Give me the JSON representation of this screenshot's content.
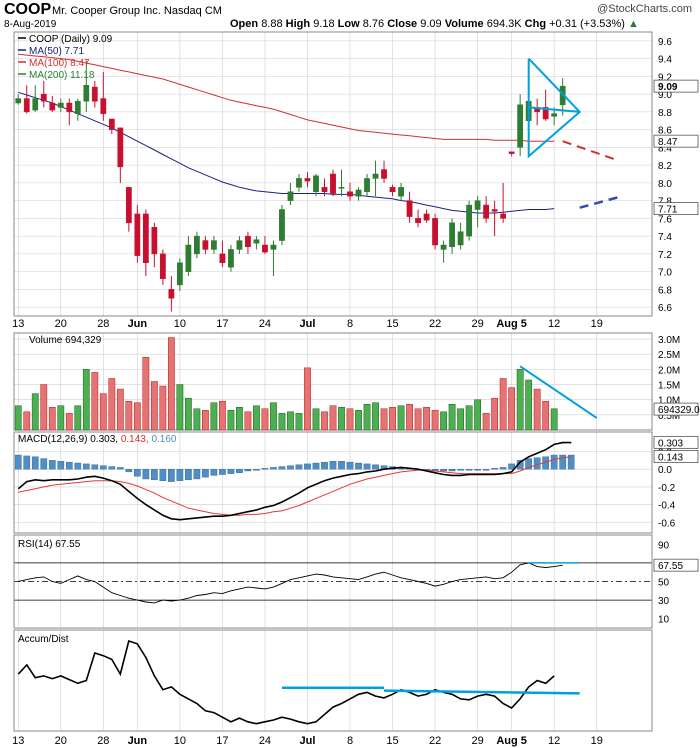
{
  "header": {
    "symbol": "COOP",
    "company": "Mr. Cooper Group Inc.  Nasdaq CM",
    "date": "8-Aug-2019",
    "brand": "@StockCharts.com",
    "quote": {
      "open_label": "Open",
      "open": "8.88",
      "high_label": "High",
      "high": "9.18",
      "low_label": "Low",
      "low": "8.76",
      "close_label": "Close",
      "close": "9.09",
      "volume_label": "Volume",
      "volume": "694.3K",
      "chg_label": "Chg",
      "chg": "+0.31 (+3.53%)"
    }
  },
  "colors": {
    "up": "#2e7d32",
    "down": "#c8102e",
    "ma50": "#1a237e",
    "ma100": "#d32f2f",
    "trend": "#00a0e0",
    "macd_hist": "#4f8fc7",
    "grid": "#cfcfcf",
    "border": "#888888"
  },
  "chart_data": [
    {
      "type": "candlestick",
      "panel": "price",
      "legend": [
        {
          "text": "COOP (Daily) 9.09",
          "color": "#000000"
        },
        {
          "text": "MA(50) 7.71",
          "color": "#1a237e"
        },
        {
          "text": "MA(100) 8.47",
          "color": "#d32f2f"
        },
        {
          "text": "MA(200) 11.18",
          "color": "#2e7d32"
        }
      ],
      "y_ticks": [
        "9.6",
        "9.4",
        "9.2",
        "9.0",
        "8.8",
        "8.6",
        "8.4",
        "8.2",
        "8.0",
        "7.8",
        "7.6",
        "7.4",
        "7.2",
        "7.0",
        "6.8",
        "6.6"
      ],
      "y_tick_values": [
        9.6,
        9.4,
        9.2,
        9.0,
        8.8,
        8.6,
        8.4,
        8.2,
        8.0,
        7.8,
        7.6,
        7.4,
        7.2,
        7.0,
        6.8,
        6.6
      ],
      "ylim": [
        6.5,
        9.7
      ],
      "price_labels": [
        {
          "text": "9.09",
          "value": 9.09,
          "bold": true
        },
        {
          "text": "8.47",
          "value": 8.47,
          "bold": false
        },
        {
          "text": "7.71",
          "value": 7.71,
          "bold": false
        }
      ],
      "x_labels": [
        "13",
        "20",
        "28",
        "Jun",
        "10",
        "17",
        "24",
        "Jul",
        "8",
        "15",
        "22",
        "29",
        "Aug 5",
        "12",
        "19"
      ],
      "x_label_index": [
        0,
        5,
        10,
        14,
        19,
        24,
        29,
        34,
        39,
        44,
        49,
        54,
        58,
        63,
        68
      ],
      "candles": [
        {
          "o": 8.9,
          "h": 9.0,
          "l": 8.88,
          "c": 8.95
        },
        {
          "o": 8.95,
          "h": 9.1,
          "l": 8.78,
          "c": 8.8
        },
        {
          "o": 8.82,
          "h": 9.1,
          "l": 8.8,
          "c": 8.95
        },
        {
          "o": 9.0,
          "h": 9.15,
          "l": 8.85,
          "c": 8.92
        },
        {
          "o": 8.9,
          "h": 8.98,
          "l": 8.8,
          "c": 8.82
        },
        {
          "o": 8.85,
          "h": 8.95,
          "l": 8.8,
          "c": 8.9
        },
        {
          "o": 8.9,
          "h": 8.95,
          "l": 8.65,
          "c": 8.8
        },
        {
          "o": 8.78,
          "h": 8.95,
          "l": 8.7,
          "c": 8.92
        },
        {
          "o": 8.92,
          "h": 9.38,
          "l": 8.8,
          "c": 9.1
        },
        {
          "o": 9.08,
          "h": 9.15,
          "l": 8.85,
          "c": 8.92
        },
        {
          "o": 8.95,
          "h": 9.25,
          "l": 8.7,
          "c": 8.78
        },
        {
          "o": 8.72,
          "h": 8.72,
          "l": 8.55,
          "c": 8.6
        },
        {
          "o": 8.62,
          "h": 8.62,
          "l": 8.0,
          "c": 8.18
        },
        {
          "o": 7.95,
          "h": 7.95,
          "l": 7.45,
          "c": 7.55
        },
        {
          "o": 7.65,
          "h": 7.75,
          "l": 7.1,
          "c": 7.18
        },
        {
          "o": 7.65,
          "h": 7.7,
          "l": 6.95,
          "c": 7.1
        },
        {
          "o": 7.5,
          "h": 7.55,
          "l": 7.05,
          "c": 7.2
        },
        {
          "o": 7.2,
          "h": 7.25,
          "l": 6.85,
          "c": 6.92
        },
        {
          "o": 6.8,
          "h": 6.95,
          "l": 6.55,
          "c": 6.7
        },
        {
          "o": 6.85,
          "h": 7.15,
          "l": 6.78,
          "c": 7.1
        },
        {
          "o": 7.0,
          "h": 7.4,
          "l": 6.95,
          "c": 7.3
        },
        {
          "o": 7.2,
          "h": 7.45,
          "l": 7.15,
          "c": 7.4
        },
        {
          "o": 7.35,
          "h": 7.4,
          "l": 7.2,
          "c": 7.25
        },
        {
          "o": 7.25,
          "h": 7.4,
          "l": 7.2,
          "c": 7.35
        },
        {
          "o": 7.2,
          "h": 7.35,
          "l": 7.05,
          "c": 7.1
        },
        {
          "o": 7.05,
          "h": 7.3,
          "l": 7.0,
          "c": 7.25
        },
        {
          "o": 7.25,
          "h": 7.4,
          "l": 7.2,
          "c": 7.35
        },
        {
          "o": 7.4,
          "h": 7.45,
          "l": 7.2,
          "c": 7.28
        },
        {
          "o": 7.32,
          "h": 7.4,
          "l": 7.25,
          "c": 7.36
        },
        {
          "o": 7.3,
          "h": 7.4,
          "l": 7.2,
          "c": 7.22
        },
        {
          "o": 7.25,
          "h": 7.35,
          "l": 6.95,
          "c": 7.3
        },
        {
          "o": 7.35,
          "h": 7.75,
          "l": 7.3,
          "c": 7.7
        },
        {
          "o": 7.8,
          "h": 8.0,
          "l": 7.75,
          "c": 7.9
        },
        {
          "o": 7.95,
          "h": 8.1,
          "l": 7.9,
          "c": 8.05
        },
        {
          "o": 8.05,
          "h": 8.12,
          "l": 7.95,
          "c": 8.02
        },
        {
          "o": 7.9,
          "h": 8.1,
          "l": 7.85,
          "c": 8.08
        },
        {
          "o": 7.95,
          "h": 8.05,
          "l": 7.85,
          "c": 7.9
        },
        {
          "o": 8.1,
          "h": 8.15,
          "l": 7.85,
          "c": 7.88
        },
        {
          "o": 7.95,
          "h": 8.15,
          "l": 7.85,
          "c": 7.95
        },
        {
          "o": 7.9,
          "h": 8.0,
          "l": 7.8,
          "c": 7.85
        },
        {
          "o": 7.85,
          "h": 7.95,
          "l": 7.8,
          "c": 7.92
        },
        {
          "o": 7.9,
          "h": 8.1,
          "l": 7.85,
          "c": 8.05
        },
        {
          "o": 8.05,
          "h": 8.25,
          "l": 7.85,
          "c": 8.1
        },
        {
          "o": 8.15,
          "h": 8.25,
          "l": 8.0,
          "c": 8.05
        },
        {
          "o": 7.95,
          "h": 7.98,
          "l": 7.85,
          "c": 7.9
        },
        {
          "o": 7.85,
          "h": 8.0,
          "l": 7.8,
          "c": 7.95
        },
        {
          "o": 7.8,
          "h": 7.9,
          "l": 7.55,
          "c": 7.62
        },
        {
          "o": 7.6,
          "h": 7.7,
          "l": 7.5,
          "c": 7.55
        },
        {
          "o": 7.65,
          "h": 7.7,
          "l": 7.55,
          "c": 7.58
        },
        {
          "o": 7.6,
          "h": 7.65,
          "l": 7.25,
          "c": 7.3
        },
        {
          "o": 7.25,
          "h": 7.35,
          "l": 7.1,
          "c": 7.3
        },
        {
          "o": 7.28,
          "h": 7.6,
          "l": 7.2,
          "c": 7.55
        },
        {
          "o": 7.3,
          "h": 7.55,
          "l": 7.25,
          "c": 7.45
        },
        {
          "o": 7.4,
          "h": 7.8,
          "l": 7.35,
          "c": 7.75
        },
        {
          "o": 7.7,
          "h": 7.85,
          "l": 7.5,
          "c": 7.8
        },
        {
          "o": 7.75,
          "h": 7.85,
          "l": 7.55,
          "c": 7.6
        },
        {
          "o": 7.7,
          "h": 7.8,
          "l": 7.4,
          "c": 7.68
        },
        {
          "o": 7.65,
          "h": 8.0,
          "l": 7.55,
          "c": 7.6
        },
        {
          "o": 8.35,
          "h": 8.35,
          "l": 8.3,
          "c": 8.33
        },
        {
          "o": 8.4,
          "h": 9.0,
          "l": 8.3,
          "c": 8.88
        },
        {
          "o": 8.7,
          "h": 9.15,
          "l": 8.55,
          "c": 8.92
        },
        {
          "o": 8.85,
          "h": 8.95,
          "l": 8.65,
          "c": 8.8
        },
        {
          "o": 8.85,
          "h": 9.05,
          "l": 8.7,
          "c": 8.72
        },
        {
          "o": 8.75,
          "h": 8.85,
          "l": 8.65,
          "c": 8.78
        },
        {
          "o": 8.88,
          "h": 9.18,
          "l": 8.76,
          "c": 9.09
        }
      ],
      "ma50": [
        9.02,
        8.99,
        8.96,
        8.93,
        8.9,
        8.86,
        8.82,
        8.78,
        8.74,
        8.7,
        8.66,
        8.62,
        8.57,
        8.52,
        8.47,
        8.42,
        8.37,
        8.32,
        8.27,
        8.22,
        8.17,
        8.13,
        8.09,
        8.05,
        8.01,
        7.98,
        7.95,
        7.93,
        7.91,
        7.9,
        7.89,
        7.88,
        7.88,
        7.88,
        7.88,
        7.88,
        7.88,
        7.87,
        7.87,
        7.87,
        7.86,
        7.85,
        7.84,
        7.83,
        7.82,
        7.8,
        7.79,
        7.77,
        7.75,
        7.73,
        7.71,
        7.69,
        7.68,
        7.67,
        7.66,
        7.66,
        7.66,
        7.67,
        7.68,
        7.69,
        7.7,
        7.7,
        7.7,
        7.71
      ],
      "ma100": [
        9.45,
        9.44,
        9.43,
        9.42,
        9.41,
        9.4,
        9.39,
        9.37,
        9.35,
        9.33,
        9.31,
        9.29,
        9.27,
        9.25,
        9.23,
        9.21,
        9.19,
        9.17,
        9.14,
        9.11,
        9.08,
        9.05,
        9.02,
        8.99,
        8.96,
        8.93,
        8.91,
        8.89,
        8.87,
        8.85,
        8.83,
        8.8,
        8.77,
        8.74,
        8.71,
        8.69,
        8.67,
        8.65,
        8.63,
        8.61,
        8.59,
        8.58,
        8.57,
        8.56,
        8.55,
        8.54,
        8.53,
        8.52,
        8.51,
        8.5,
        8.49,
        8.49,
        8.49,
        8.49,
        8.49,
        8.49,
        8.48,
        8.48,
        8.48,
        8.48,
        8.47,
        8.47,
        8.47,
        8.47
      ],
      "ma50_projection": [
        [
          66,
          7.72
        ],
        [
          71,
          7.85
        ]
      ],
      "ma100_projection": [
        [
          64,
          8.47
        ],
        [
          70,
          8.27
        ]
      ],
      "triangle": [
        [
          60,
          9.4
        ],
        [
          66,
          8.8
        ],
        [
          60,
          8.3
        ],
        [
          60,
          9.4
        ]
      ],
      "triangle_mid": [
        [
          60,
          8.85
        ],
        [
          66,
          8.8
        ]
      ]
    },
    {
      "type": "bar",
      "panel": "volume",
      "legend": "Volume 694,329",
      "y_ticks": [
        "3.0M",
        "2.5M",
        "2.0M",
        "1.5M",
        "1.0M",
        "0.5M"
      ],
      "y_tick_values": [
        3.0,
        2.5,
        2.0,
        1.5,
        1.0,
        0.5
      ],
      "ylim": [
        0,
        3.2
      ],
      "last_label": "694329.0",
      "last_value": 0.69,
      "values": [
        0.8,
        0.6,
        1.2,
        1.5,
        0.75,
        0.8,
        0.55,
        0.8,
        2.0,
        1.9,
        1.2,
        1.7,
        1.35,
        0.95,
        0.9,
        2.4,
        1.6,
        1.45,
        3.05,
        1.5,
        1.05,
        0.7,
        0.65,
        0.9,
        0.95,
        0.65,
        0.75,
        0.6,
        0.8,
        0.7,
        0.9,
        0.55,
        0.6,
        0.55,
        2.05,
        0.7,
        0.6,
        0.8,
        0.75,
        0.7,
        0.65,
        0.85,
        0.9,
        0.7,
        0.75,
        0.8,
        0.85,
        0.7,
        0.75,
        0.65,
        0.6,
        0.85,
        0.7,
        0.8,
        1.0,
        0.55,
        1.05,
        1.7,
        1.4,
        2.0,
        1.65,
        1.35,
        0.95,
        0.7
      ],
      "trendline": [
        [
          59,
          2.1
        ],
        [
          68,
          0.4
        ]
      ]
    },
    {
      "type": "line",
      "panel": "macd",
      "legend": {
        "label": "MACD(12,26,9)",
        "v1": "0.303",
        "v2": "0.143",
        "v3": "0.160"
      },
      "y_ticks": [
        "0.2",
        "0.0",
        "-0.2",
        "-0.4",
        "-0.6"
      ],
      "y_tick_values": [
        0.2,
        0.0,
        -0.2,
        -0.4,
        -0.6
      ],
      "ylim": [
        -0.72,
        0.42
      ],
      "right_labels": [
        {
          "text": "0.303",
          "value": 0.303
        },
        {
          "text": "0.143",
          "value": 0.143
        }
      ],
      "macd": [
        -0.22,
        -0.14,
        -0.12,
        -0.13,
        -0.12,
        -0.12,
        -0.12,
        -0.11,
        -0.09,
        -0.08,
        -0.1,
        -0.13,
        -0.17,
        -0.25,
        -0.33,
        -0.4,
        -0.46,
        -0.52,
        -0.56,
        -0.57,
        -0.56,
        -0.55,
        -0.54,
        -0.53,
        -0.53,
        -0.52,
        -0.5,
        -0.48,
        -0.46,
        -0.43,
        -0.41,
        -0.37,
        -0.32,
        -0.27,
        -0.21,
        -0.17,
        -0.13,
        -0.1,
        -0.08,
        -0.06,
        -0.05,
        -0.03,
        -0.02,
        0.0,
        0.01,
        0.02,
        0.01,
        0.0,
        -0.02,
        -0.04,
        -0.06,
        -0.07,
        -0.07,
        -0.06,
        -0.06,
        -0.06,
        -0.06,
        -0.05,
        -0.03,
        0.08,
        0.14,
        0.18,
        0.22,
        0.28,
        0.3,
        0.3
      ],
      "signal": [
        -0.26,
        -0.24,
        -0.22,
        -0.2,
        -0.18,
        -0.17,
        -0.16,
        -0.15,
        -0.14,
        -0.13,
        -0.13,
        -0.13,
        -0.14,
        -0.16,
        -0.19,
        -0.23,
        -0.27,
        -0.32,
        -0.36,
        -0.4,
        -0.44,
        -0.46,
        -0.48,
        -0.5,
        -0.51,
        -0.52,
        -0.52,
        -0.51,
        -0.51,
        -0.5,
        -0.48,
        -0.47,
        -0.44,
        -0.41,
        -0.37,
        -0.33,
        -0.29,
        -0.25,
        -0.21,
        -0.17,
        -0.14,
        -0.11,
        -0.09,
        -0.07,
        -0.05,
        -0.03,
        -0.02,
        -0.01,
        -0.01,
        -0.02,
        -0.03,
        -0.04,
        -0.05,
        -0.05,
        -0.05,
        -0.05,
        -0.05,
        -0.05,
        -0.05,
        -0.02,
        0.02,
        0.05,
        0.08,
        0.11,
        0.13,
        0.14
      ],
      "histogram": [
        0.16,
        0.15,
        0.14,
        0.12,
        0.1,
        0.09,
        0.08,
        0.07,
        0.06,
        0.05,
        0.04,
        0.03,
        0.02,
        -0.03,
        -0.08,
        -0.11,
        -0.12,
        -0.13,
        -0.14,
        -0.13,
        -0.12,
        -0.11,
        -0.09,
        -0.07,
        -0.06,
        -0.05,
        -0.04,
        -0.02,
        -0.01,
        0.01,
        0.02,
        0.03,
        0.04,
        0.05,
        0.06,
        0.07,
        0.08,
        0.09,
        0.09,
        0.08,
        0.07,
        0.06,
        0.05,
        0.04,
        0.03,
        0.02,
        0.01,
        0.0,
        -0.01,
        -0.02,
        -0.02,
        -0.02,
        -0.01,
        -0.01,
        -0.01,
        0.0,
        0.01,
        0.02,
        0.06,
        0.1,
        0.12,
        0.13,
        0.14,
        0.16,
        0.16,
        0.16
      ]
    },
    {
      "type": "line",
      "panel": "rsi",
      "legend": "RSI(14) 67.55",
      "y_ticks": [
        "90",
        "70",
        "50",
        "30",
        "10"
      ],
      "y_tick_values": [
        90,
        70,
        50,
        30,
        10
      ],
      "ylim": [
        0,
        100
      ],
      "right_label": "67.55",
      "right_value": 67.55,
      "values": [
        50,
        52,
        54,
        55,
        50,
        48,
        52,
        56,
        52,
        50,
        44,
        38,
        35,
        32,
        30,
        28,
        27,
        30,
        29,
        30,
        32,
        35,
        36,
        38,
        37,
        40,
        42,
        44,
        43,
        42,
        44,
        48,
        52,
        54,
        56,
        58,
        57,
        55,
        54,
        53,
        52,
        55,
        58,
        60,
        57,
        54,
        52,
        50,
        48,
        45,
        47,
        50,
        52,
        53,
        54,
        55,
        53,
        54,
        60,
        68,
        70,
        66,
        65,
        66,
        67.55
      ],
      "trendline": [
        [
          60,
          70
        ],
        [
          66,
          70
        ]
      ]
    },
    {
      "type": "line",
      "panel": "accum_dist",
      "legend": "Accum/Dist",
      "values": [
        0.62,
        0.72,
        0.58,
        0.6,
        0.57,
        0.6,
        0.56,
        0.52,
        0.55,
        0.85,
        0.82,
        0.78,
        0.62,
        0.98,
        0.95,
        0.8,
        0.6,
        0.45,
        0.48,
        0.4,
        0.35,
        0.3,
        0.22,
        0.2,
        0.15,
        0.1,
        0.14,
        0.1,
        0.08,
        0.1,
        0.12,
        0.15,
        0.13,
        0.1,
        0.08,
        0.1,
        0.18,
        0.26,
        0.3,
        0.35,
        0.4,
        0.42,
        0.38,
        0.36,
        0.4,
        0.45,
        0.42,
        0.38,
        0.4,
        0.45,
        0.42,
        0.4,
        0.35,
        0.34,
        0.38,
        0.4,
        0.38,
        0.3,
        0.25,
        0.35,
        0.48,
        0.55,
        0.52,
        0.6
      ],
      "trendline_a": [
        [
          31,
          0.47
        ],
        [
          43,
          0.47
        ]
      ],
      "trendline_b": [
        [
          43,
          0.44
        ],
        [
          66,
          0.41
        ]
      ]
    }
  ]
}
